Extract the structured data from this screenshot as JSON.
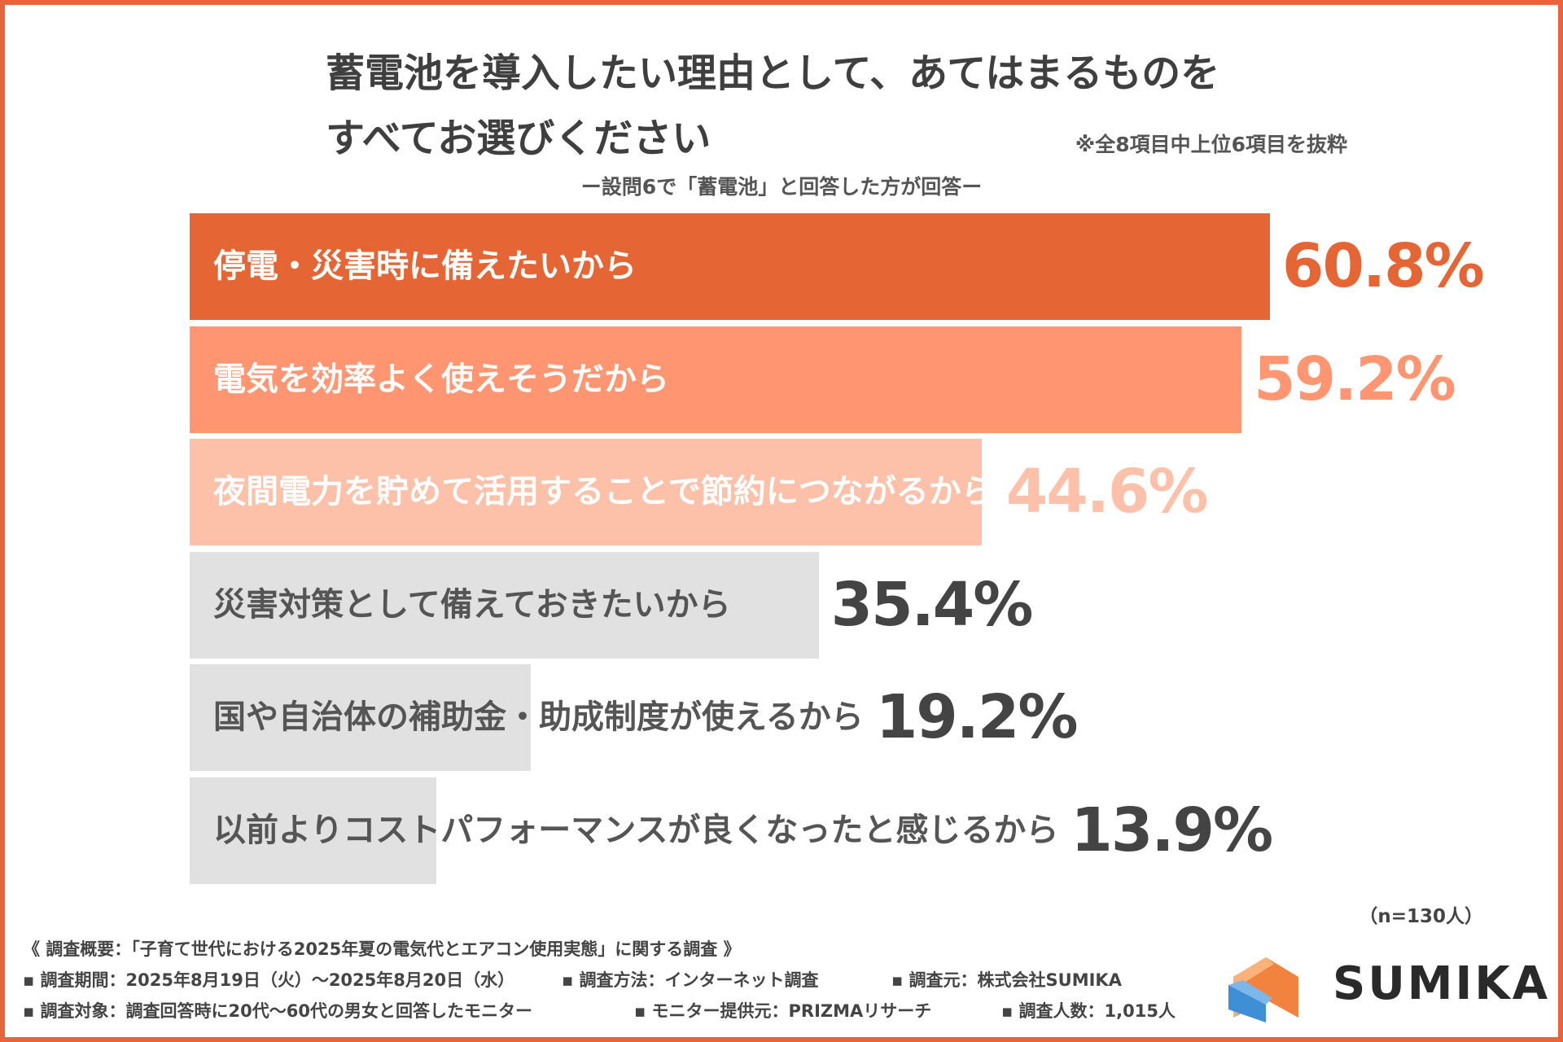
{
  "title": {
    "line1": "蓄電池を導入したい理由として、あてはまるものを",
    "line2": "すべてお選びください"
  },
  "note": "※全8項目中上位6項目を抜粋",
  "subtitle": "ー設問6で「蓄電池」と回答した方が回答ー",
  "chart_data": {
    "type": "bar",
    "orientation": "horizontal",
    "categories": [
      "停電・災害時に備えたいから",
      "電気を効率よく使えそうだから",
      "夜間電力を貯めて活用することで節約につながるから",
      "災害対策として備えておきたいから",
      "国や自治体の補助金・助成制度が使えるから",
      "以前よりコストパフォーマンスが良くなったと感じるから"
    ],
    "values": [
      60.8,
      59.2,
      44.6,
      35.4,
      19.2,
      13.9
    ],
    "value_labels": [
      "60.8%",
      "59.2%",
      "44.6%",
      "35.4%",
      "19.2%",
      "13.9%"
    ],
    "bar_colors": [
      "#E56534",
      "#FF9671",
      "#FDC1AA",
      "#E1E1E1",
      "#E1E1E1",
      "#E1E1E1"
    ],
    "label_colors": [
      "#FFFFFF",
      "#FFFFFF",
      "#FFFFFF",
      "#555555",
      "#555555",
      "#555555"
    ],
    "value_colors": [
      "#E56534",
      "#FF9671",
      "#FDC1AA",
      "#444444",
      "#444444",
      "#444444"
    ],
    "xlim": [
      0,
      60.8
    ],
    "grid": false,
    "legend": "none"
  },
  "n_label": "（n=130人）",
  "footer": {
    "line1": "《 調査概要：「子育て世代における2025年夏の電気代とエアコン使用実態」に関する調査 》",
    "period": "▪ 調査期間：2025年8月19日（火）〜2025年8月20日（水）",
    "method": "▪ 調査方法：インターネット調査",
    "source": "▪ 調査元：株式会社SUMIKA",
    "target": "▪ 調査対象：調査回答時に20代〜60代の男女と回答したモニター",
    "provider": "▪ モニター提供元：PRIZMAリサーチ",
    "count": "▪ 調査人数：1,015人"
  },
  "logo": {
    "text": "SUMIKA",
    "icon": "house-logo-icon",
    "colors": {
      "orange": "#F2833E",
      "blue": "#3F8FD6",
      "light": "#F9B27A"
    }
  }
}
